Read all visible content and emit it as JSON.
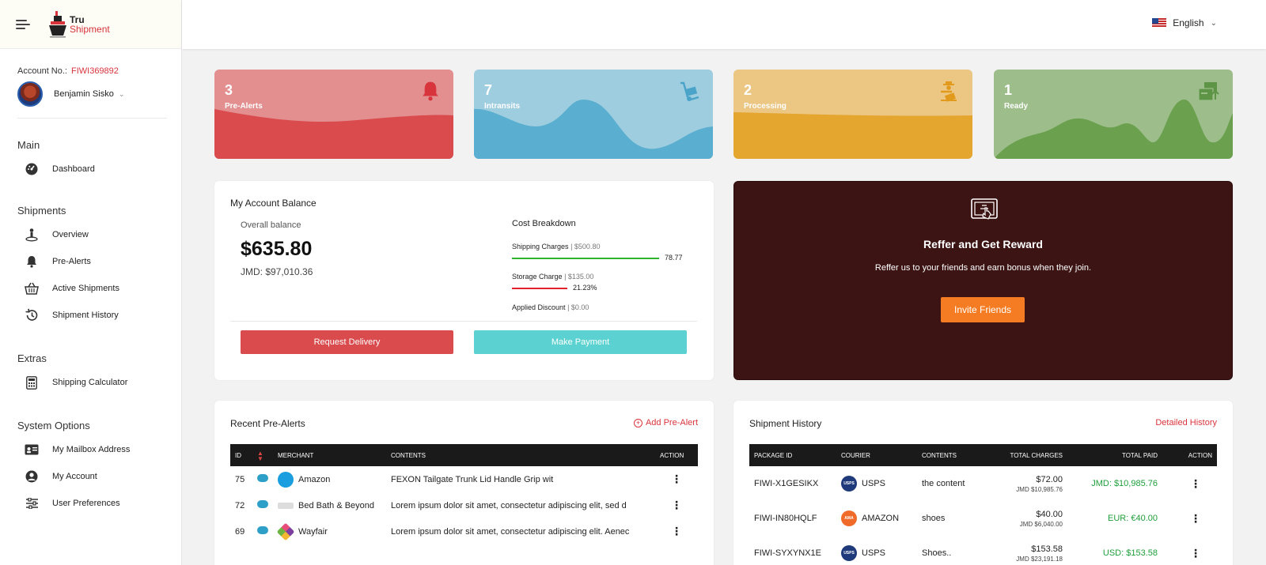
{
  "brand": {
    "line1": "Tru",
    "line2": "Shipment"
  },
  "topbar": {
    "language": "English"
  },
  "account": {
    "label": "Account No.:",
    "number": "FIWI369892",
    "user_name": "Benjamin Sisko"
  },
  "nav": {
    "main_title": "Main",
    "dashboard": "Dashboard",
    "shipments_title": "Shipments",
    "overview": "Overview",
    "pre_alerts": "Pre-Alerts",
    "active_shipments": "Active Shipments",
    "shipment_history": "Shipment History",
    "extras_title": "Extras",
    "shipping_calculator": "Shipping Calculator",
    "system_title": "System Options",
    "mailbox": "My Mailbox Address",
    "my_account": "My Account",
    "preferences": "User Preferences"
  },
  "stats": [
    {
      "count": "3",
      "label": "Pre-Alerts",
      "icon": "bell-icon",
      "color": "#e38e8f",
      "wave": "#d94b4d"
    },
    {
      "count": "7",
      "label": "Intransits",
      "icon": "hand-truck-icon",
      "color": "#9fcde0",
      "wave": "#5aafd0"
    },
    {
      "count": "2",
      "label": "Processing",
      "icon": "worker-box-icon",
      "color": "#ecc683",
      "wave": "#e5a630"
    },
    {
      "count": "1",
      "label": "Ready",
      "icon": "package-ready-icon",
      "color": "#9dbe8b",
      "wave": "#6aa04e"
    }
  ],
  "balance": {
    "title": "My Account Balance",
    "overall_label": "Overall balance",
    "amount": "$635.80",
    "jmd": "JMD: $97,010.36",
    "breakdown_title": "Cost Breakdown",
    "shipping_label": "Shipping Charges",
    "shipping_value": "| $500.80",
    "shipping_pct": "78.77",
    "storage_label": "Storage Charge",
    "storage_value": "| $135.00",
    "storage_pct": "21.23%",
    "discount_label": "Applied Discount",
    "discount_value": "| $0.00",
    "request_delivery": "Request Delivery",
    "make_payment": "Make Payment",
    "colors": {
      "shipping": "#2cb52c",
      "storage": "#e0232a",
      "request": "#d94b4d",
      "payment": "#5bd1d1"
    }
  },
  "reward": {
    "title": "Reffer and Get Reward",
    "subtitle": "Reffer us to your friends and earn bonus when they join.",
    "button": "Invite Friends"
  },
  "prealerts": {
    "title": "Recent Pre-Alerts",
    "add_link": "Add Pre-Alert",
    "headers": {
      "id": "ID",
      "merchant": "MERCHANT",
      "contents": "CONTENTS",
      "action": "ACTION"
    },
    "rows": [
      {
        "id": "75",
        "merchant": "Amazon",
        "contents": "FEXON Tailgate Trunk Lid Handle Grip wit"
      },
      {
        "id": "72",
        "merchant": "Bed Bath & Beyond",
        "contents": "Lorem ipsum dolor sit amet, consectetur adipiscing elit, sed d"
      },
      {
        "id": "69",
        "merchant": "Wayfair",
        "contents": "Lorem ipsum dolor sit amet, consectetur adipiscing elit. Aenec"
      }
    ]
  },
  "history": {
    "title": "Shipment History",
    "detail_link": "Detailed History",
    "headers": {
      "package": "PACKAGE ID",
      "courier": "COURIER",
      "contents": "CONTENTS",
      "charges": "TOTAL CHARGES",
      "paid": "TOTAL PAID",
      "action": "ACTION"
    },
    "rows": [
      {
        "package": "FIWI-X1GESIKX",
        "courier": "USPS",
        "contents": "the content",
        "charges": "$72.00",
        "charges_jmd": "JMD $10,985.76",
        "paid": "JMD: $10,985.76"
      },
      {
        "package": "FIWI-IN80HQLF",
        "courier": "AMAZON",
        "contents": "shoes",
        "charges": "$40.00",
        "charges_jmd": "JMD $6,040.00",
        "paid": "EUR: €40.00"
      },
      {
        "package": "FIWI-SYXYNX1E",
        "courier": "USPS",
        "contents": "Shoes..",
        "charges": "$153.58",
        "charges_jmd": "JMD $23,191.18",
        "paid": "USD: $153.58"
      }
    ]
  }
}
